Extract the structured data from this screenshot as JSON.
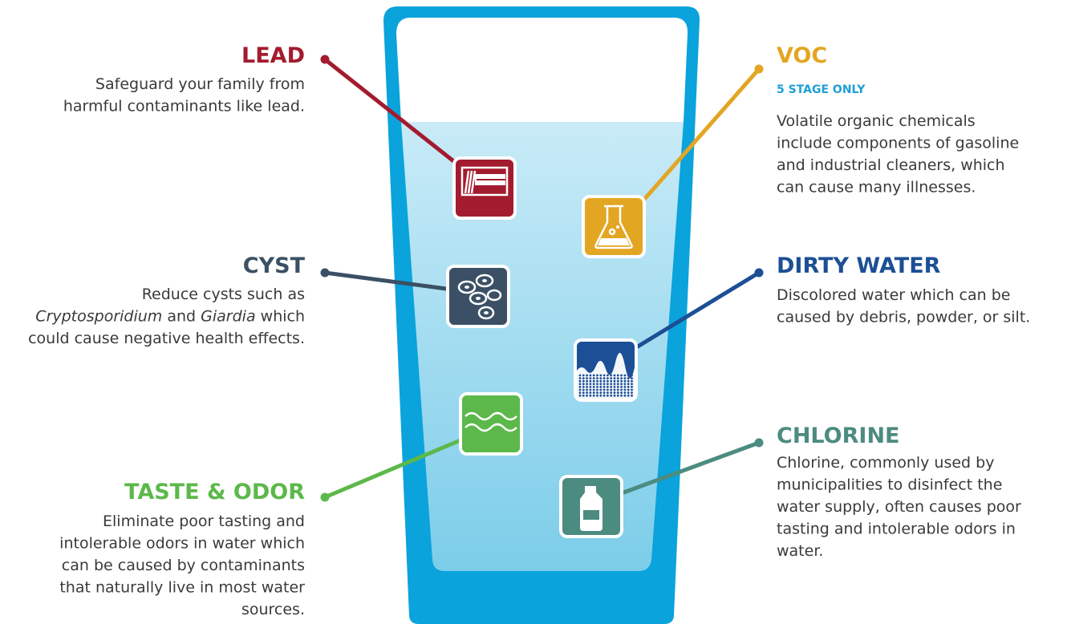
{
  "items": [
    {
      "title": "LEAD",
      "color": "#a31b2e",
      "description_lines": [
        "Safeguard your family from",
        "harmful contaminants like lead."
      ]
    },
    {
      "title": "CYST",
      "color": "#3b5064",
      "description_lines": [
        "Reduce cysts such as",
        [
          "Cryptosporidium",
          " and ",
          "Giardia",
          " which"
        ],
        "could cause negative health effects."
      ]
    },
    {
      "title": "TASTE & ODOR",
      "color": "#5cb84a",
      "description_lines": [
        "Eliminate poor tasting and",
        "intolerable odors in water which",
        "can be caused by contaminants",
        "that naturally live in most water",
        "sources."
      ]
    },
    {
      "title": "VOC",
      "subtitle": "5 STAGE ONLY",
      "color": "#e3a623",
      "description_lines": [
        "Volatile organic chemicals",
        "include components of gasoline",
        "and industrial cleaners, which",
        "can cause many illnesses."
      ]
    },
    {
      "title": "DIRTY WATER",
      "color": "#1c4f96",
      "description_lines": [
        "Discolored water which can be",
        "caused by debris, powder, or silt."
      ]
    },
    {
      "title": "CHLORINE",
      "color": "#4c8b80",
      "description_lines": [
        "Chlorine, commonly used by",
        "municipalities to disinfect the",
        "water supply, often causes poor",
        "tasting and intolerable odors in",
        "water."
      ]
    }
  ],
  "subtitle_color": "#1e9fd6"
}
